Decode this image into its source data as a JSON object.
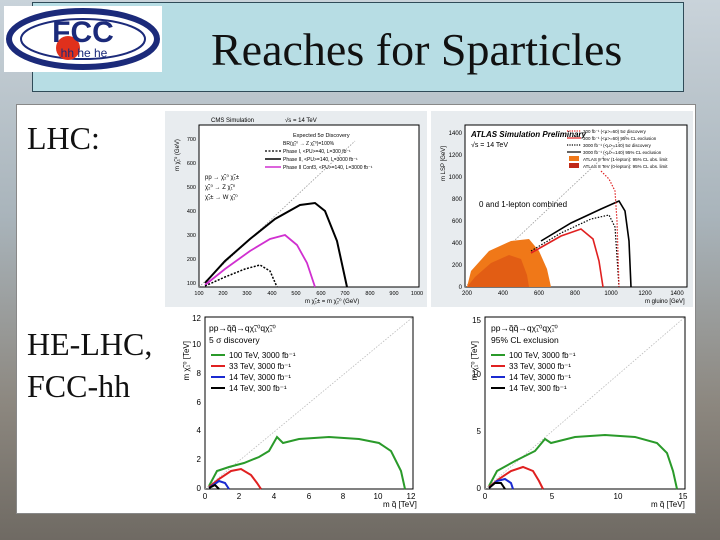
{
  "slide": {
    "title": "Reaches for Sparticles",
    "logo_text": "FCC",
    "logo_sub": "hh  he  he",
    "lhc_label": "LHC:",
    "fcc_label_line1": "HE-LHC,",
    "fcc_label_line2": "FCC-hh"
  },
  "plots": {
    "cms": {
      "header": "CMS Simulation",
      "energy": "√s = 14 TeV",
      "legend_title": "Expected 5σ Discovery",
      "legend": [
        "BR(χ̃₂⁰ → Z χ̃₁⁰)=100%",
        "Phase I, <PU>=40, L=300 fb⁻¹",
        "Phase II, <PU>=140, L=3000 fb⁻¹",
        "Phase II Conf3, <PU>=140, L=3000 fb⁻¹"
      ],
      "process1": "pp → χ̃₂⁰ χ̃₁±",
      "process2": "χ̃₂⁰ → Z χ̃₁⁰",
      "process3": "χ̃₁± → W χ̃₁⁰",
      "ylabel": "m χ̃₁⁰ (GeV)",
      "xlabel": "m χ̃₁± = m χ̃₂⁰ (GeV)",
      "xticks": [
        "100",
        "200",
        "300",
        "400",
        "500",
        "600",
        "700",
        "800",
        "900",
        "1000"
      ],
      "yticks": [
        "100",
        "200",
        "300",
        "400",
        "500",
        "600",
        "700"
      ]
    },
    "atlas": {
      "header": "ATLAS Simulation Preliminary",
      "energy": "√s = 14 TeV",
      "legend": [
        "300 fb⁻¹ (<μ>=60) 5σ discovery",
        "300 fb⁻¹ (<μ>=60) 95% CL exclusion",
        "3000 fb⁻¹ (<μ>=140) 5σ discovery",
        "3000 fb⁻¹ (<μ>=140) 95% CL exclusion",
        "ATLAS 8 TeV (1-lepton): 95% CL obs. limit",
        "ATLAS 8 TeV (0-lepton): 95% CL obs. limit"
      ],
      "note": "0 and 1-lepton combined",
      "ylabel": "m LSP [GeV]",
      "xlabel": "m gluino [GeV]",
      "xticks": [
        "200",
        "400",
        "600",
        "800",
        "1000",
        "1200",
        "1400"
      ],
      "yticks": [
        "0",
        "200",
        "400",
        "600",
        "800",
        "1000",
        "1200",
        "1400"
      ]
    },
    "fcc_left": {
      "process": "pp→q̃q̃→qχ̃₁⁰qχ̃₁⁰",
      "sig": "5 σ discovery",
      "legend": [
        "100 TeV, 3000 fb⁻¹",
        "33 TeV, 3000 fb⁻¹",
        "14 TeV, 3000 fb⁻¹",
        "14 TeV, 300 fb⁻¹"
      ],
      "ylabel": "m χ̃₁⁰ [TeV]",
      "xlabel": "m q̃ [TeV]",
      "xticks": [
        "0",
        "2",
        "4",
        "6",
        "8",
        "10",
        "12"
      ],
      "yticks": [
        "0",
        "2",
        "4",
        "6",
        "8",
        "10",
        "12"
      ]
    },
    "fcc_right": {
      "process": "pp→q̃q̃→qχ̃₁⁰qχ̃₁⁰",
      "sig": "95% CL exclusion",
      "legend": [
        "100 TeV, 3000 fb⁻¹",
        "33 TeV, 3000 fb⁻¹",
        "14 TeV, 3000 fb⁻¹",
        "14 TeV, 300 fb⁻¹"
      ],
      "ylabel": "m χ̃₁⁰ [TeV]",
      "xlabel": "m q̃ [TeV]",
      "xticks": [
        "0",
        "5",
        "10",
        "15"
      ],
      "yticks": [
        "0",
        "5",
        "10",
        "15"
      ]
    }
  },
  "colors": {
    "green": "#2a9a2a",
    "red": "#e02020",
    "blue": "#1a2ad0",
    "black": "#000000",
    "magenta": "#d030d0",
    "orange": "#f07818"
  }
}
